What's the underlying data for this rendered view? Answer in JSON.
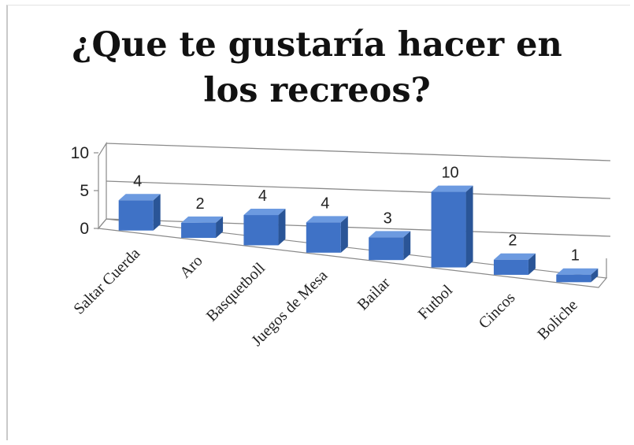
{
  "title_line1": "¿Que te gustaría hacer en",
  "title_line2": "los recreos?",
  "colors": {
    "bar_front": "#3f72c6",
    "bar_side": "#2a5597",
    "bar_top": "#6c9ae0",
    "grid": "#8a8a8a"
  },
  "chart_data": {
    "type": "bar",
    "title": "¿Que te gustaría hacer en los recreos?",
    "categories": [
      "Saltar Cuerda",
      "Aro",
      "Basquetboll",
      "Juegos de Mesa",
      "Bailar",
      "Futbol",
      "Cincos",
      "Boliche"
    ],
    "values": [
      4,
      2,
      4,
      4,
      3,
      10,
      2,
      1
    ],
    "data_labels": [
      "4",
      "2",
      "4",
      "4",
      "3",
      "10",
      "2",
      "1"
    ],
    "y_ticks": [
      "10",
      "5",
      "0"
    ],
    "xlabel": "",
    "ylabel": "",
    "ylim": [
      0,
      10
    ],
    "grid": true,
    "legend": "none",
    "three_d": true
  }
}
